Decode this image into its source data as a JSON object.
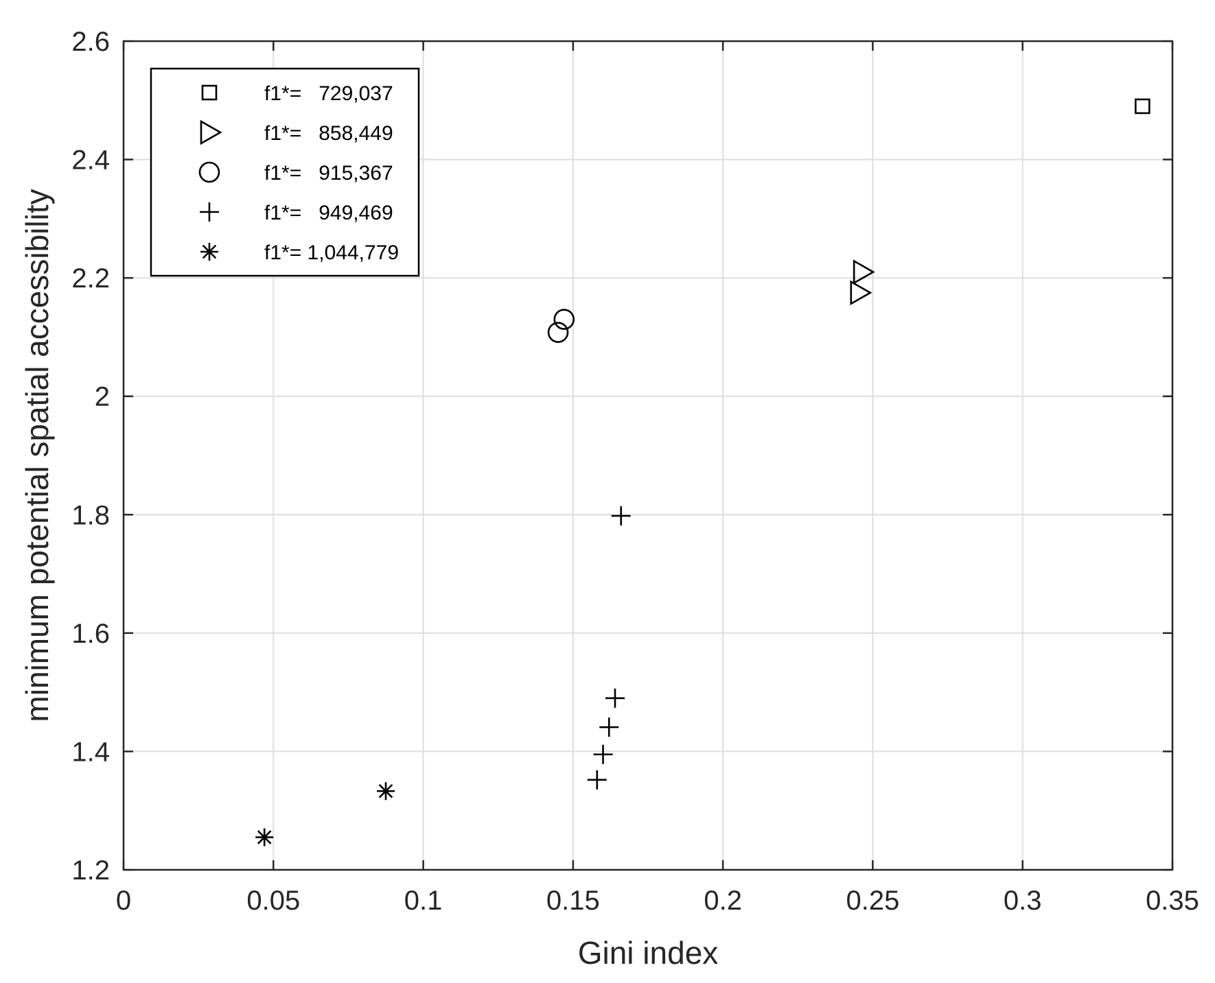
{
  "chart_data": {
    "type": "scatter",
    "title": "",
    "xlabel": "Gini index",
    "ylabel": "minimum potential spatial accessibility",
    "xlim": [
      0,
      0.35
    ],
    "ylim": [
      1.2,
      2.6
    ],
    "x_ticks": [
      0,
      0.05,
      0.1,
      0.15,
      0.2,
      0.25,
      0.3,
      0.35
    ],
    "x_tick_labels": [
      "0",
      "0.05",
      "0.1",
      "0.15",
      "0.2",
      "0.25",
      "0.3",
      "0.35"
    ],
    "y_ticks": [
      1.2,
      1.4,
      1.6,
      1.8,
      2.0,
      2.2,
      2.4,
      2.6
    ],
    "y_tick_labels": [
      "1.2",
      "1.4",
      "1.6",
      "1.8",
      "2",
      "2.2",
      "2.4",
      "2.6"
    ],
    "grid": true,
    "legend_position": "top-left",
    "series": [
      {
        "name": "f1*=   729,037",
        "marker": "square",
        "x": [
          0.34
        ],
        "y": [
          2.49
        ]
      },
      {
        "name": "f1*=   858,449",
        "marker": "triangle-right",
        "x": [
          0.2465,
          0.2455
        ],
        "y": [
          2.21,
          2.175
        ]
      },
      {
        "name": "f1*=   915,367",
        "marker": "circle",
        "x": [
          0.147,
          0.145
        ],
        "y": [
          2.13,
          2.108
        ]
      },
      {
        "name": "f1*=   949,469",
        "marker": "plus",
        "x": [
          0.166,
          0.164,
          0.162,
          0.16,
          0.158
        ],
        "y": [
          1.798,
          1.49,
          1.441,
          1.395,
          1.352
        ]
      },
      {
        "name": "f1*= 1,044,779",
        "marker": "asterisk",
        "x": [
          0.047,
          0.0875
        ],
        "y": [
          1.255,
          1.333
        ]
      }
    ]
  }
}
